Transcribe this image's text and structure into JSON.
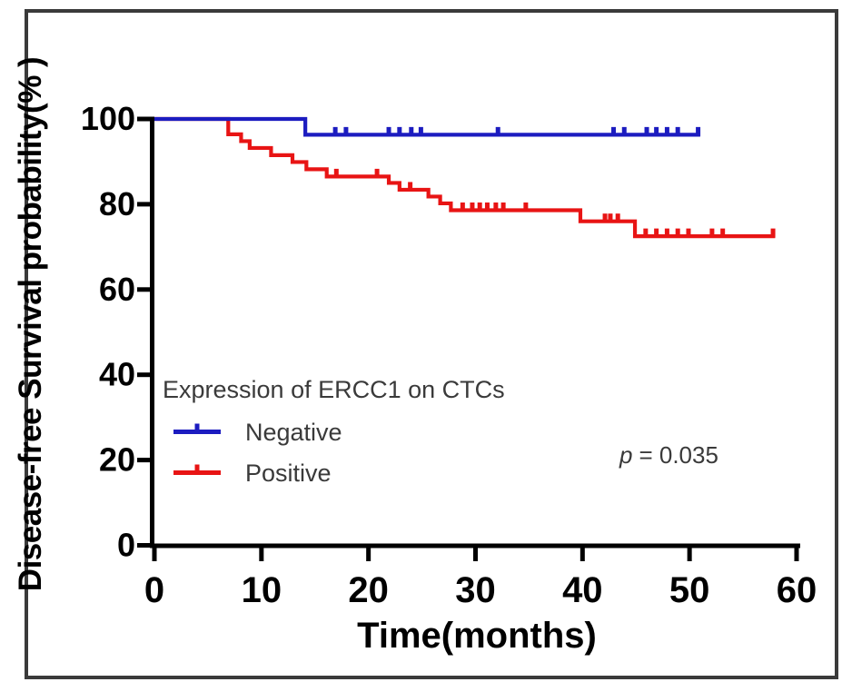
{
  "chart_data": {
    "type": "line",
    "subtype": "kaplan-meier-step",
    "title": "",
    "xlabel": "Time(months)",
    "ylabel": "Disease-free Survival probability(% )",
    "xlim": [
      0,
      60
    ],
    "ylim": [
      0,
      100
    ],
    "x_ticks": [
      0,
      10,
      20,
      30,
      40,
      50,
      60
    ],
    "y_ticks": [
      0,
      20,
      40,
      60,
      80,
      100
    ],
    "grid": "off",
    "legend_title": "Expression of ERCC1 on CTCs",
    "legend_position": "inside-middle-left",
    "annotation": "p = 0.035",
    "p_label": {
      "symbol": "p",
      "text": "= 0.035"
    },
    "colors": {
      "negative": "#1c1cc0",
      "positive": "#e81414",
      "axis": "#000000",
      "frame": "#3a3a3a"
    },
    "series": [
      {
        "name": "Negative",
        "color": "#1c1cc0",
        "start": [
          0,
          100
        ],
        "steps": [
          [
            14.1,
            96.3
          ]
        ],
        "end_time": 51.0,
        "censor_times": [
          16.9,
          17.9,
          21.9,
          22.9,
          24.0,
          24.9,
          32.1,
          42.9,
          43.9,
          46.0,
          46.9,
          47.9,
          48.9,
          50.8
        ]
      },
      {
        "name": "Positive",
        "color": "#e81414",
        "start": [
          0,
          100
        ],
        "steps": [
          [
            6.9,
            96.4
          ],
          [
            8.1,
            94.8
          ],
          [
            8.9,
            93.2
          ],
          [
            10.9,
            91.5
          ],
          [
            12.9,
            89.9
          ],
          [
            14.2,
            88.2
          ],
          [
            16.1,
            86.5
          ],
          [
            21.9,
            85.0
          ],
          [
            22.9,
            83.4
          ],
          [
            25.6,
            81.8
          ],
          [
            26.7,
            80.2
          ],
          [
            27.7,
            78.6
          ],
          [
            39.8,
            76.0
          ],
          [
            44.9,
            72.5
          ]
        ],
        "end_time": 58.0,
        "censor_times": [
          17.0,
          20.8,
          23.9,
          28.8,
          29.7,
          30.4,
          31.1,
          31.9,
          32.6,
          34.7,
          42.1,
          42.6,
          43.3,
          45.9,
          46.9,
          47.9,
          48.9,
          49.9,
          52.1,
          53.1,
          57.8
        ]
      }
    ]
  }
}
